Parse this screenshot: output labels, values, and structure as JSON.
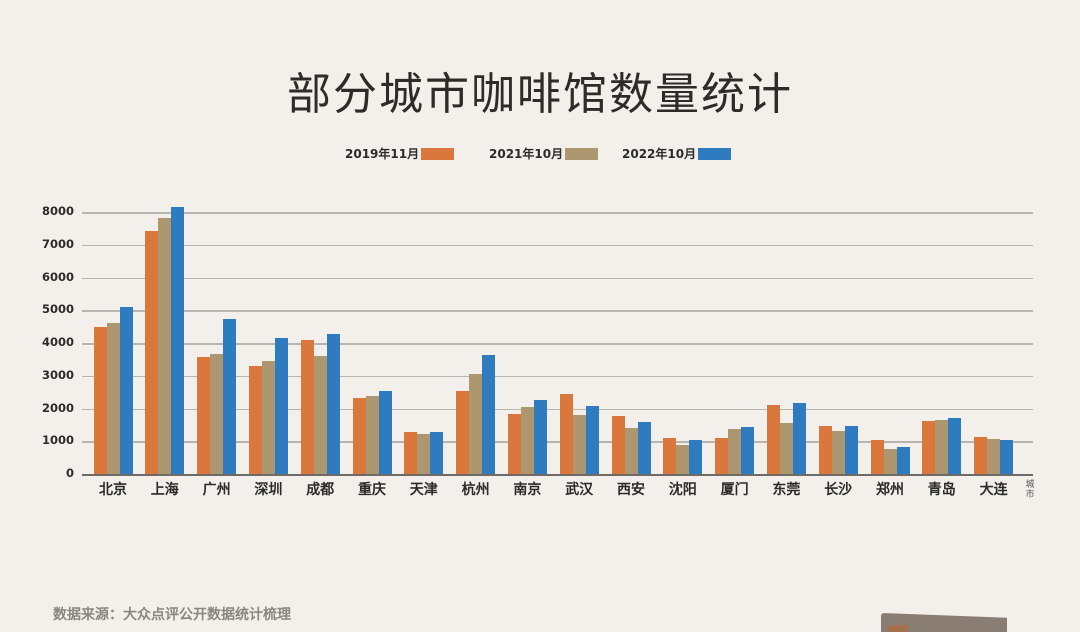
{
  "title": "部分城市咖啡馆数量统计",
  "source_note": "数据来源：大众点评公开数据统计梳理",
  "legend": [
    {
      "label": "2019年11月",
      "color": "#d9773d"
    },
    {
      "label": "2021年10月",
      "color": "#ad9770"
    },
    {
      "label": "2022年10月",
      "color": "#2e7bbf"
    }
  ],
  "x_axis_title": "城市",
  "y_ticks": [
    "0",
    "1000",
    "2000",
    "3000",
    "4000",
    "5000",
    "6000",
    "7000",
    "8000"
  ],
  "chart_data": {
    "type": "bar",
    "title": "部分城市咖啡馆数量统计",
    "xlabel": "城市",
    "ylabel": "",
    "ylim": [
      0,
      8000
    ],
    "grid": true,
    "legend_position": "top",
    "categories": [
      "北京",
      "上海",
      "广州",
      "深圳",
      "成都",
      "重庆",
      "天津",
      "杭州",
      "南京",
      "武汉",
      "西安",
      "沈阳",
      "厦门",
      "东莞",
      "长沙",
      "郑州",
      "青岛",
      "大连"
    ],
    "series": [
      {
        "name": "2019年11月",
        "color": "#d9773d",
        "values": [
          4480,
          7420,
          3580,
          3300,
          4080,
          2310,
          1290,
          2540,
          1830,
          2450,
          1760,
          1110,
          1090,
          2100,
          1470,
          1030,
          1630,
          1140
        ]
      },
      {
        "name": "2021年10月",
        "color": "#ad9770",
        "values": [
          4600,
          7820,
          3650,
          3450,
          3600,
          2370,
          1230,
          3060,
          2060,
          1790,
          1410,
          880,
          1380,
          1570,
          1320,
          750,
          1640,
          1060
        ]
      },
      {
        "name": "2022年10月",
        "color": "#2e7bbf",
        "values": [
          5100,
          8150,
          4720,
          4150,
          4270,
          2530,
          1290,
          3620,
          2270,
          2080,
          1580,
          1050,
          1450,
          2180,
          1460,
          810,
          1700,
          1040
        ]
      }
    ],
    "source": "数据来源：大众点评公开数据统计梳理"
  }
}
